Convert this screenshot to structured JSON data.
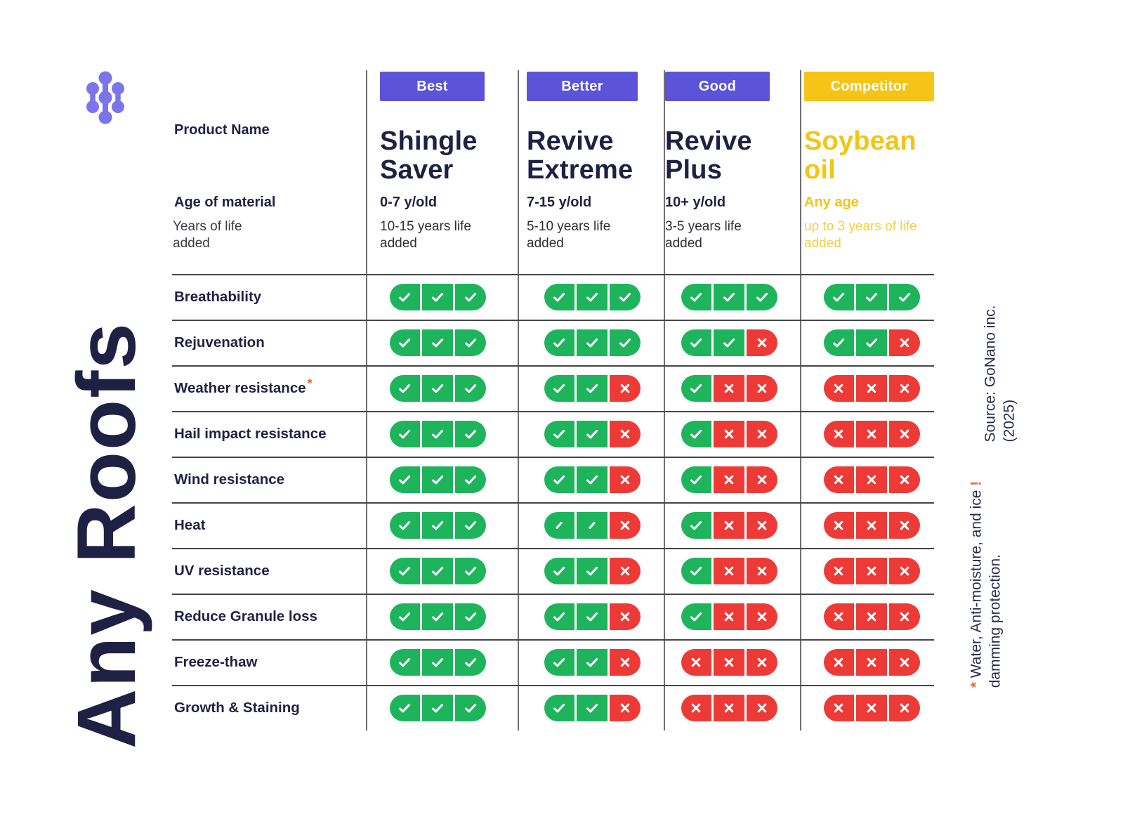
{
  "brand": {
    "vertical_title": "Any Roofs",
    "logo_icon": "molecule-icon",
    "logo_color": "#7b74ea"
  },
  "header": {
    "product_name_label": "Product Name",
    "age_label": "Age of material",
    "life_label": "Years of life added"
  },
  "products": [
    {
      "tier": "Best",
      "tier_bg": "#5b54d9",
      "name": "Shingle Saver",
      "age": "0-7 y/old",
      "life": "10-15 years life added",
      "name_color": "#1f2144",
      "age_color": "#1f2144",
      "life_color": "#2f2f38"
    },
    {
      "tier": "Better",
      "tier_bg": "#5b54d9",
      "name": "Revive Extreme",
      "age": "7-15 y/old",
      "life": "5-10 years life added",
      "name_color": "#1f2144",
      "age_color": "#1f2144",
      "life_color": "#2f2f38"
    },
    {
      "tier": "Good",
      "tier_bg": "#5b54d9",
      "name": "Revive Plus",
      "age": "10+ y/old",
      "life": "3-5 years life added",
      "name_color": "#1f2144",
      "age_color": "#1f2144",
      "life_color": "#2f2f38"
    },
    {
      "tier": "Competitor",
      "tier_bg": "#f5c416",
      "name": "Soybean oil",
      "age": "Any age",
      "life": "up to 3 years of life added",
      "name_color": "#f3c515",
      "age_color": "#f3c515",
      "life_color": "#f7cf3d"
    }
  ],
  "rows": [
    {
      "label": "Breathability",
      "marker": "",
      "cells": [
        [
          "check",
          "check",
          "check"
        ],
        [
          "check",
          "check",
          "check"
        ],
        [
          "check",
          "check",
          "check"
        ],
        [
          "check",
          "check",
          "check"
        ]
      ]
    },
    {
      "label": "Rejuvenation",
      "marker": "",
      "cells": [
        [
          "check",
          "check",
          "check"
        ],
        [
          "check",
          "check",
          "check"
        ],
        [
          "check",
          "check",
          "x"
        ],
        [
          "check",
          "check",
          "x"
        ]
      ]
    },
    {
      "label": "Weather resistance",
      "marker": "*",
      "cells": [
        [
          "check",
          "check",
          "check"
        ],
        [
          "check",
          "check",
          "x"
        ],
        [
          "check",
          "x",
          "x"
        ],
        [
          "x",
          "x",
          "x"
        ]
      ]
    },
    {
      "label": "Hail impact resistance",
      "marker": "",
      "cells": [
        [
          "check",
          "check",
          "check"
        ],
        [
          "check",
          "check",
          "x"
        ],
        [
          "check",
          "x",
          "x"
        ],
        [
          "x",
          "x",
          "x"
        ]
      ]
    },
    {
      "label": "Wind resistance",
      "marker": "",
      "cells": [
        [
          "check",
          "check",
          "check"
        ],
        [
          "check",
          "check",
          "x"
        ],
        [
          "check",
          "x",
          "x"
        ],
        [
          "x",
          "x",
          "x"
        ]
      ]
    },
    {
      "label": "Heat",
      "marker": "",
      "cells": [
        [
          "check",
          "check",
          "check"
        ],
        [
          "slash",
          "slash",
          "x"
        ],
        [
          "check",
          "x",
          "x"
        ],
        [
          "x",
          "x",
          "x"
        ]
      ]
    },
    {
      "label": "UV resistance",
      "marker": "",
      "cells": [
        [
          "check",
          "check",
          "check"
        ],
        [
          "check",
          "check",
          "x"
        ],
        [
          "check",
          "x",
          "x"
        ],
        [
          "x",
          "x",
          "x"
        ]
      ]
    },
    {
      "label": "Reduce Granule loss",
      "marker": "",
      "cells": [
        [
          "check",
          "check",
          "check"
        ],
        [
          "check",
          "check",
          "x"
        ],
        [
          "check",
          "x",
          "x"
        ],
        [
          "x",
          "x",
          "x"
        ]
      ]
    },
    {
      "label": "Freeze-thaw",
      "marker": "",
      "cells": [
        [
          "check",
          "check",
          "check"
        ],
        [
          "check",
          "check",
          "x"
        ],
        [
          "x",
          "x",
          "x"
        ],
        [
          "x",
          "x",
          "x"
        ]
      ]
    },
    {
      "label": "Growth & Staining",
      "marker": "",
      "cells": [
        [
          "check",
          "check",
          "check"
        ],
        [
          "check",
          "check",
          "x"
        ],
        [
          "x",
          "x",
          "x"
        ],
        [
          "x",
          "x",
          "x"
        ]
      ]
    }
  ],
  "notes": {
    "source": {
      "line1": "Source: GoNano inc.",
      "line2": "(2025)"
    },
    "footnote": {
      "prefix_marker": "*",
      "line1": "Water, Anti-moisture, and ice",
      "suffix_marker": "!",
      "line2": "damming protection."
    }
  },
  "colors": {
    "navy": "#1f2144",
    "badge_purple": "#5b54d9",
    "badge_yellow": "#f5c416",
    "pill_green": "#1eb45c",
    "pill_red": "#ee3a36",
    "accent_orange": "#e0693f",
    "grid_line": "#46464a"
  }
}
